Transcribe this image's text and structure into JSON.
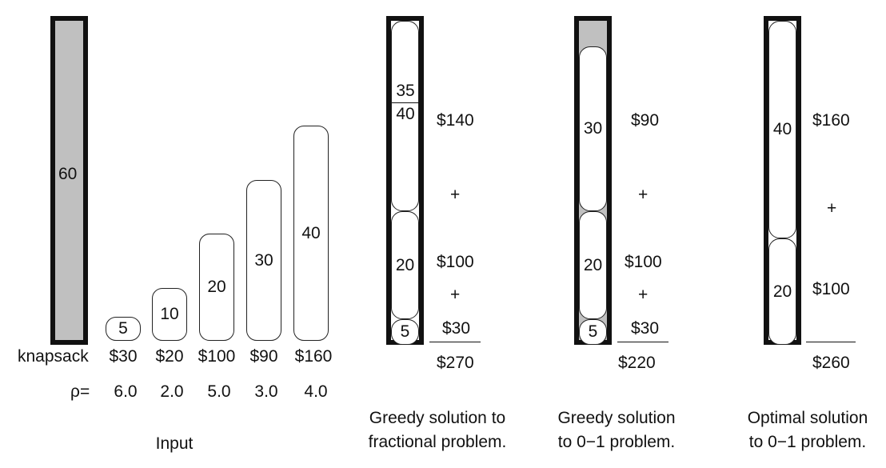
{
  "input": {
    "knapsack_capacity": "60",
    "knapsack_label": "knapsack",
    "rho_label": "ρ=",
    "caption": "Input",
    "items": [
      {
        "weight": "5",
        "value": "$30",
        "rho": "6.0"
      },
      {
        "weight": "10",
        "value": "$20",
        "rho": "2.0"
      },
      {
        "weight": "20",
        "value": "$100",
        "rho": "5.0"
      },
      {
        "weight": "30",
        "value": "$90",
        "rho": "3.0"
      },
      {
        "weight": "40",
        "value": "$160",
        "rho": "4.0"
      }
    ]
  },
  "greedy_fractional": {
    "frac_num": "35",
    "frac_den": "40",
    "top_value": "$140",
    "plus1": "+",
    "mid_weight": "20",
    "mid_value": "$100",
    "plus2": "+",
    "bottom_weight": "5",
    "bottom_value": "$30",
    "total": "$270",
    "caption_line1": "Greedy solution to",
    "caption_line2": "fractional problem."
  },
  "greedy_01": {
    "top_weight": "30",
    "top_value": "$90",
    "plus1": "+",
    "mid_weight": "20",
    "mid_value": "$100",
    "plus2": "+",
    "bottom_weight": "5",
    "bottom_value": "$30",
    "total": "$220",
    "caption_line1": "Greedy solution",
    "caption_line2": "to 0−1 problem."
  },
  "optimal_01": {
    "top_weight": "40",
    "top_value": "$160",
    "plus": "+",
    "bottom_weight": "20",
    "bottom_value": "$100",
    "total": "$260",
    "caption_line1": "Optimal solution",
    "caption_line2": "to 0−1 problem."
  }
}
